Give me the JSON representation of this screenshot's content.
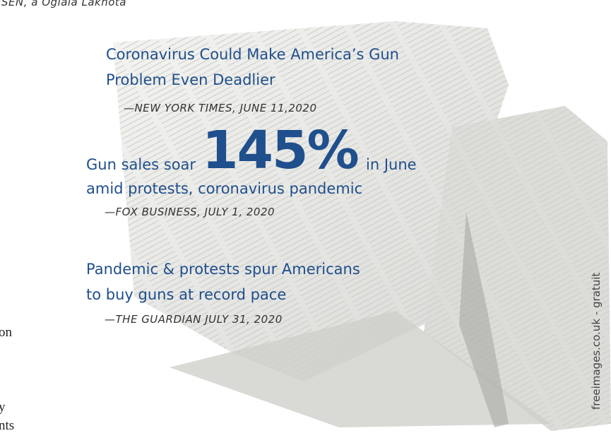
{
  "caption": "ESEN, a Oglala Lakhota",
  "left_fragments": [
    "on",
    "y",
    "nts"
  ],
  "quotes": [
    {
      "headline": [
        "Coronavirus Could Make America’s Gun",
        "Problem Even Deadlier"
      ],
      "source": "—NEW YORK TIMES, JUNE 11,2020"
    },
    {
      "headline_start": "Gun sales soar",
      "highlight": "145%",
      "headline_end": "in June",
      "headline_line2": "amid protests, coronavirus pandemic",
      "source": "—FOX BUSINESS, JULY 1, 2020"
    },
    {
      "headline": [
        "Pandemic & protests spur Americans",
        "to buy guns at record pace"
      ],
      "source": "—THE GUARDIAN JULY 31, 2020"
    }
  ],
  "credit": "freeimages.co.uk - gratuit"
}
